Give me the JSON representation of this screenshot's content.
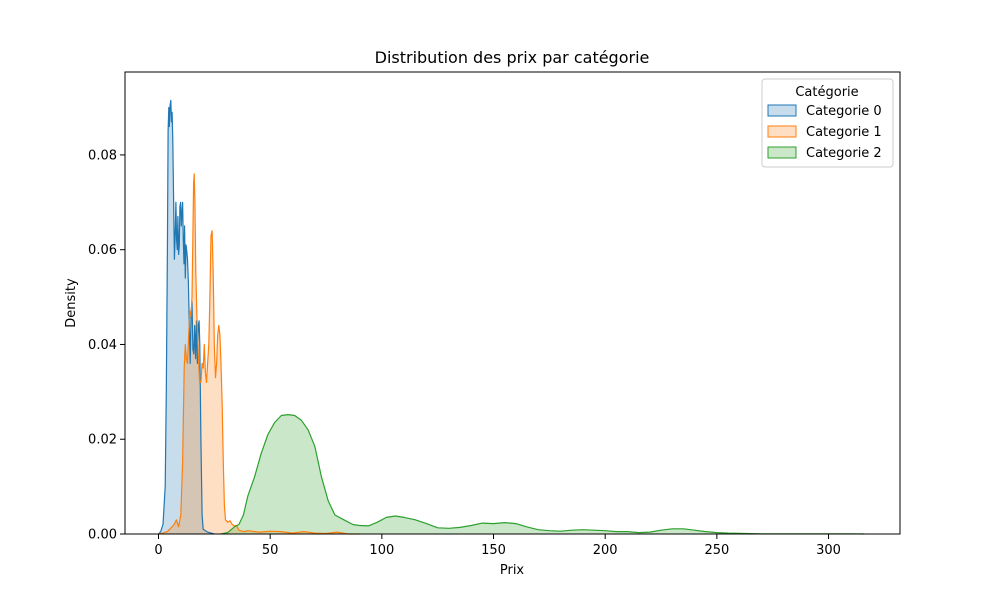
{
  "chart_data": {
    "type": "area",
    "title": "Distribution des prix par catégorie",
    "xlabel": "Prix",
    "ylabel": "Density",
    "xlim": [
      -15,
      332
    ],
    "ylim": [
      0,
      0.0975
    ],
    "x_ticks": [
      0,
      50,
      100,
      150,
      200,
      250,
      300
    ],
    "y_ticks": [
      0.0,
      0.02,
      0.04,
      0.06,
      0.08
    ],
    "y_tick_labels": [
      "0.00",
      "0.02",
      "0.04",
      "0.06",
      "0.08"
    ],
    "grid": false,
    "legend": {
      "title": "Catégorie",
      "position": "top-right"
    },
    "series": [
      {
        "name": "Categorie 0",
        "color": "#1f77b4",
        "points": [
          [
            0,
            0.0
          ],
          [
            1,
            0.0005
          ],
          [
            2,
            0.002
          ],
          [
            3,
            0.01
          ],
          [
            3.5,
            0.03
          ],
          [
            4,
            0.06
          ],
          [
            4.3,
            0.085
          ],
          [
            4.6,
            0.09
          ],
          [
            4.9,
            0.086
          ],
          [
            5.2,
            0.0905
          ],
          [
            5.5,
            0.0915
          ],
          [
            5.8,
            0.087
          ],
          [
            6.1,
            0.089
          ],
          [
            6.4,
            0.083
          ],
          [
            6.8,
            0.069
          ],
          [
            7.1,
            0.058
          ],
          [
            7.5,
            0.064
          ],
          [
            7.8,
            0.07
          ],
          [
            8.1,
            0.062
          ],
          [
            8.4,
            0.06
          ],
          [
            8.7,
            0.067
          ],
          [
            9.0,
            0.059
          ],
          [
            9.3,
            0.061
          ],
          [
            9.6,
            0.069
          ],
          [
            9.9,
            0.07
          ],
          [
            10.2,
            0.065
          ],
          [
            10.5,
            0.068
          ],
          [
            10.8,
            0.07
          ],
          [
            11.1,
            0.062
          ],
          [
            11.4,
            0.057
          ],
          [
            11.7,
            0.065
          ],
          [
            12.0,
            0.054
          ],
          [
            12.3,
            0.061
          ],
          [
            12.6,
            0.06
          ],
          [
            13.0,
            0.058
          ],
          [
            13.4,
            0.053
          ],
          [
            13.8,
            0.044
          ],
          [
            14.2,
            0.036
          ],
          [
            14.6,
            0.047
          ],
          [
            15.0,
            0.049
          ],
          [
            15.4,
            0.039
          ],
          [
            15.8,
            0.038
          ],
          [
            16.2,
            0.044
          ],
          [
            16.6,
            0.037
          ],
          [
            17.0,
            0.045
          ],
          [
            17.4,
            0.036
          ],
          [
            17.8,
            0.044
          ],
          [
            18.2,
            0.045
          ],
          [
            18.5,
            0.04
          ],
          [
            19.0,
            0.02
          ],
          [
            19.5,
            0.004
          ],
          [
            20,
            0.001
          ],
          [
            22,
            0.0004
          ],
          [
            25,
            0.0
          ]
        ]
      },
      {
        "name": "Categorie 1",
        "color": "#ff7f0e",
        "points": [
          [
            0,
            0.0
          ],
          [
            2,
            0.0002
          ],
          [
            4,
            0.0005
          ],
          [
            6,
            0.0015
          ],
          [
            7,
            0.002
          ],
          [
            8,
            0.003
          ],
          [
            9,
            0.0015
          ],
          [
            10,
            0.004
          ],
          [
            10.8,
            0.015
          ],
          [
            11.5,
            0.035
          ],
          [
            12,
            0.04
          ],
          [
            12.5,
            0.037
          ],
          [
            13,
            0.036
          ],
          [
            13.5,
            0.042
          ],
          [
            14,
            0.047
          ],
          [
            14.5,
            0.046
          ],
          [
            15,
            0.05
          ],
          [
            15.3,
            0.06
          ],
          [
            15.7,
            0.074
          ],
          [
            16,
            0.076
          ],
          [
            16.3,
            0.07
          ],
          [
            16.7,
            0.055
          ],
          [
            17.2,
            0.046
          ],
          [
            17.8,
            0.038
          ],
          [
            18.4,
            0.032
          ],
          [
            19,
            0.032
          ],
          [
            19.5,
            0.036
          ],
          [
            20,
            0.035
          ],
          [
            20.5,
            0.04
          ],
          [
            21,
            0.034
          ],
          [
            21.5,
            0.032
          ],
          [
            22,
            0.036
          ],
          [
            22.5,
            0.04
          ],
          [
            23,
            0.05
          ],
          [
            23.5,
            0.063
          ],
          [
            24,
            0.064
          ],
          [
            24.5,
            0.055
          ],
          [
            25,
            0.04
          ],
          [
            25.5,
            0.033
          ],
          [
            26,
            0.036
          ],
          [
            26.5,
            0.042
          ],
          [
            27,
            0.044
          ],
          [
            27.5,
            0.042
          ],
          [
            28,
            0.036
          ],
          [
            28.5,
            0.027
          ],
          [
            29,
            0.015
          ],
          [
            29.5,
            0.006
          ],
          [
            30,
            0.003
          ],
          [
            31,
            0.0025
          ],
          [
            32,
            0.0028
          ],
          [
            33,
            0.002
          ],
          [
            34,
            0.0017
          ],
          [
            35,
            0.0018
          ],
          [
            36,
            0.0008
          ],
          [
            38,
            0.0005
          ],
          [
            40,
            0.0007
          ],
          [
            45,
            0.0004
          ],
          [
            50,
            0.0006
          ],
          [
            55,
            0.0005
          ],
          [
            60,
            0.0002
          ],
          [
            65,
            0.0005
          ],
          [
            70,
            0.0002
          ],
          [
            75,
            0.0001
          ],
          [
            80,
            0.0004
          ],
          [
            85,
            0.0
          ],
          [
            90,
            0.0
          ]
        ]
      },
      {
        "name": "Categorie 2",
        "color": "#2ca02c",
        "points": [
          [
            28,
            0.0
          ],
          [
            31,
            0.0003
          ],
          [
            34,
            0.0015
          ],
          [
            36,
            0.002
          ],
          [
            38,
            0.004
          ],
          [
            40,
            0.008
          ],
          [
            43,
            0.012
          ],
          [
            46,
            0.017
          ],
          [
            49,
            0.021
          ],
          [
            52,
            0.0235
          ],
          [
            55,
            0.025
          ],
          [
            58,
            0.0252
          ],
          [
            61,
            0.025
          ],
          [
            64,
            0.024
          ],
          [
            67,
            0.022
          ],
          [
            70,
            0.0185
          ],
          [
            73,
            0.012
          ],
          [
            76,
            0.007
          ],
          [
            79,
            0.004
          ],
          [
            83,
            0.003
          ],
          [
            87,
            0.002
          ],
          [
            90,
            0.0018
          ],
          [
            94,
            0.0017
          ],
          [
            98,
            0.0025
          ],
          [
            102,
            0.0035
          ],
          [
            106,
            0.0038
          ],
          [
            110,
            0.0035
          ],
          [
            115,
            0.003
          ],
          [
            120,
            0.0022
          ],
          [
            125,
            0.0013
          ],
          [
            130,
            0.0012
          ],
          [
            135,
            0.0014
          ],
          [
            140,
            0.0018
          ],
          [
            145,
            0.0023
          ],
          [
            150,
            0.0022
          ],
          [
            155,
            0.0024
          ],
          [
            160,
            0.0022
          ],
          [
            165,
            0.0015
          ],
          [
            170,
            0.0009
          ],
          [
            175,
            0.0007
          ],
          [
            180,
            0.0006
          ],
          [
            185,
            0.0008
          ],
          [
            190,
            0.0009
          ],
          [
            195,
            0.0008
          ],
          [
            200,
            0.0007
          ],
          [
            205,
            0.0005
          ],
          [
            210,
            0.0005
          ],
          [
            215,
            0.0003
          ],
          [
            220,
            0.0004
          ],
          [
            225,
            0.0008
          ],
          [
            230,
            0.0011
          ],
          [
            235,
            0.0011
          ],
          [
            240,
            0.0008
          ],
          [
            245,
            0.0005
          ],
          [
            250,
            0.0003
          ],
          [
            255,
            0.0002
          ],
          [
            260,
            0.00015
          ],
          [
            270,
            5e-05
          ],
          [
            280,
            5e-05
          ],
          [
            290,
            5e-05
          ],
          [
            300,
            5e-05
          ],
          [
            310,
            5e-05
          ],
          [
            316,
            0.0
          ]
        ]
      }
    ]
  }
}
